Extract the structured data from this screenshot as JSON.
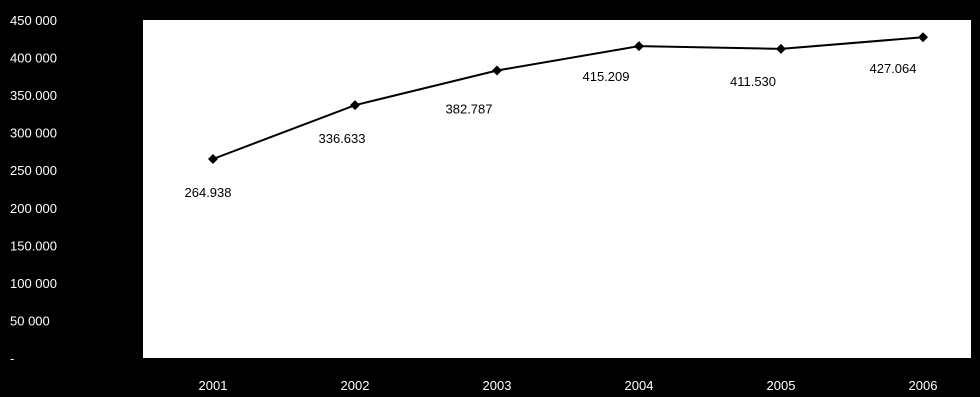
{
  "chart_data": {
    "type": "line",
    "title": "",
    "xlabel": "",
    "ylabel": "",
    "categories": [
      "2001",
      "2002",
      "2003",
      "2004",
      "2005",
      "2006"
    ],
    "series": [
      {
        "values": [
          264938,
          336633,
          382787,
          415209,
          411530,
          427064
        ],
        "data_labels": [
          "264.938",
          "336.633",
          "382.787",
          "415.209",
          "411.530",
          "427.064"
        ],
        "color": "#000000",
        "marker": "diamond"
      }
    ],
    "y_ticks": [
      0,
      50000,
      100000,
      150000,
      200000,
      250000,
      300000,
      350000,
      400000,
      450000
    ],
    "y_tick_labels": [
      "-",
      "50 000",
      "100 000",
      "150.000",
      "200 000",
      "250 000",
      "300 000",
      "350.000",
      "400 000",
      "450 000"
    ],
    "ylim": [
      0,
      450000
    ],
    "grid": false,
    "legend": "none",
    "colors": {
      "background": "#000000",
      "plot_area": "#ffffff",
      "axis_text": "#ffffff",
      "series": "#000000"
    }
  }
}
